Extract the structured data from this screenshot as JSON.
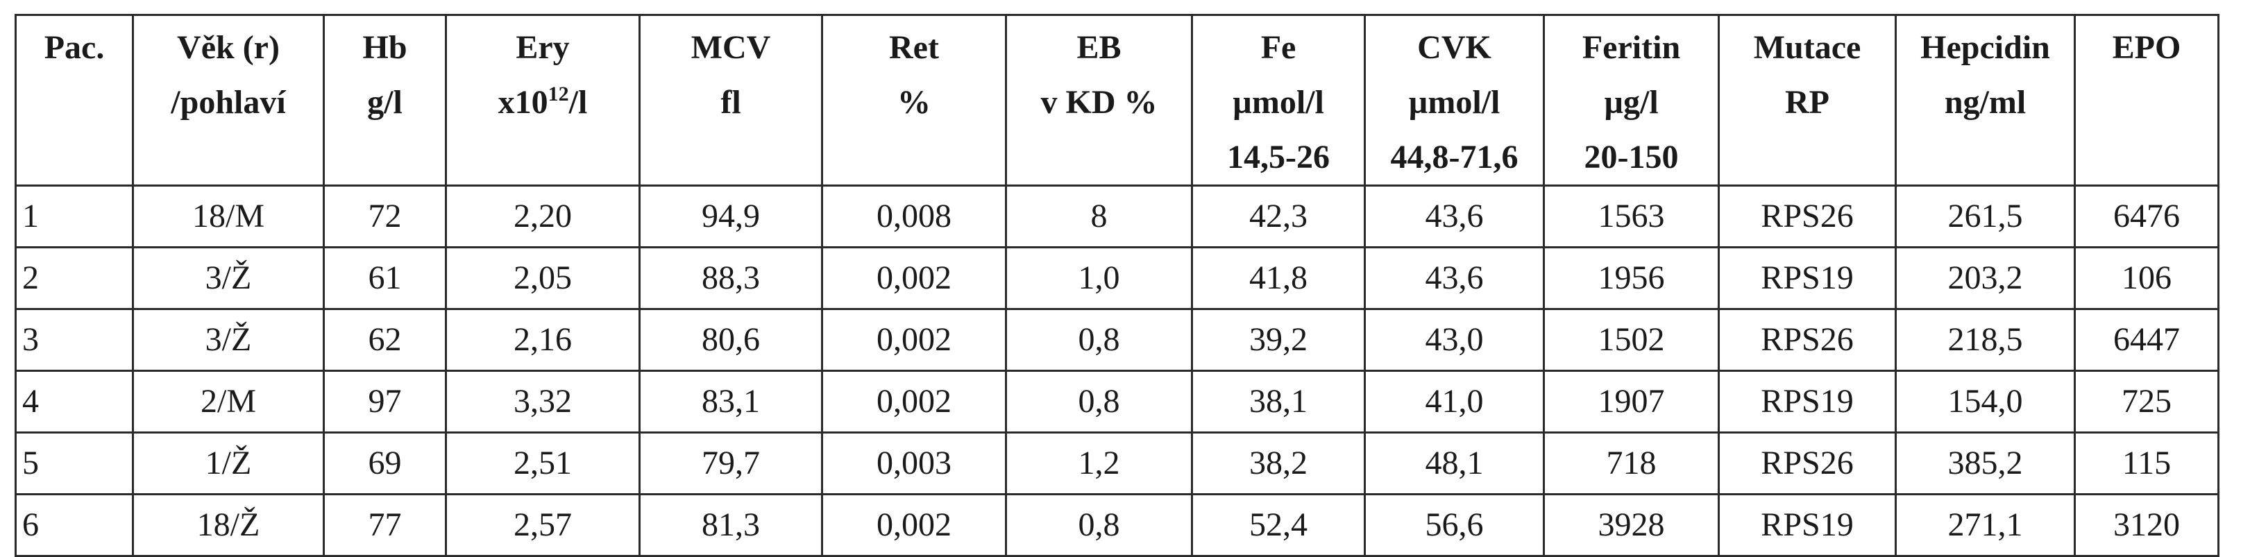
{
  "table": {
    "header": [
      [
        "Pac."
      ],
      [
        "Věk (r)",
        "/pohlaví"
      ],
      [
        "Hb",
        "g/l"
      ],
      [
        "Ery",
        {
          "base": "x10",
          "sup": "12",
          "rest": "/l"
        }
      ],
      [
        "MCV",
        "fl"
      ],
      [
        "Ret",
        "%"
      ],
      [
        "EB",
        "v KD %"
      ],
      [
        "Fe",
        "µmol/l",
        "14,5-26"
      ],
      [
        "CVK",
        "µmol/l",
        "44,8-71,6"
      ],
      [
        "Feritin",
        "µg/l",
        "20-150"
      ],
      [
        "Mutace",
        "RP"
      ],
      [
        "Hepcidin",
        "ng/ml"
      ],
      [
        "EPO"
      ]
    ],
    "rows": [
      [
        "1",
        "18/M",
        "72",
        "2,20",
        "94,9",
        "0,008",
        "8",
        "42,3",
        "43,6",
        "1563",
        "RPS26",
        "261,5",
        "6476"
      ],
      [
        "2",
        "3/Ž",
        "61",
        "2,05",
        "88,3",
        "0,002",
        "1,0",
        "41,8",
        "43,6",
        "1956",
        "RPS19",
        "203,2",
        "106"
      ],
      [
        "3",
        "3/Ž",
        "62",
        "2,16",
        "80,6",
        "0,002",
        "0,8",
        "39,2",
        "43,0",
        "1502",
        "RPS26",
        "218,5",
        "6447"
      ],
      [
        "4",
        "2/M",
        "97",
        "3,32",
        "83,1",
        "0,002",
        "0,8",
        "38,1",
        "41,0",
        "1907",
        "RPS19",
        "154,0",
        "725"
      ],
      [
        "5",
        "1/Ž",
        "69",
        "2,51",
        "79,7",
        "0,003",
        "1,2",
        "38,2",
        "48,1",
        "718",
        "RPS26",
        "385,2",
        "115"
      ],
      [
        "6",
        "18/Ž",
        "77",
        "2,57",
        "81,3",
        "0,002",
        "0,8",
        "52,4",
        "56,6",
        "3928",
        "RPS19",
        "271,1",
        "3120"
      ]
    ]
  }
}
